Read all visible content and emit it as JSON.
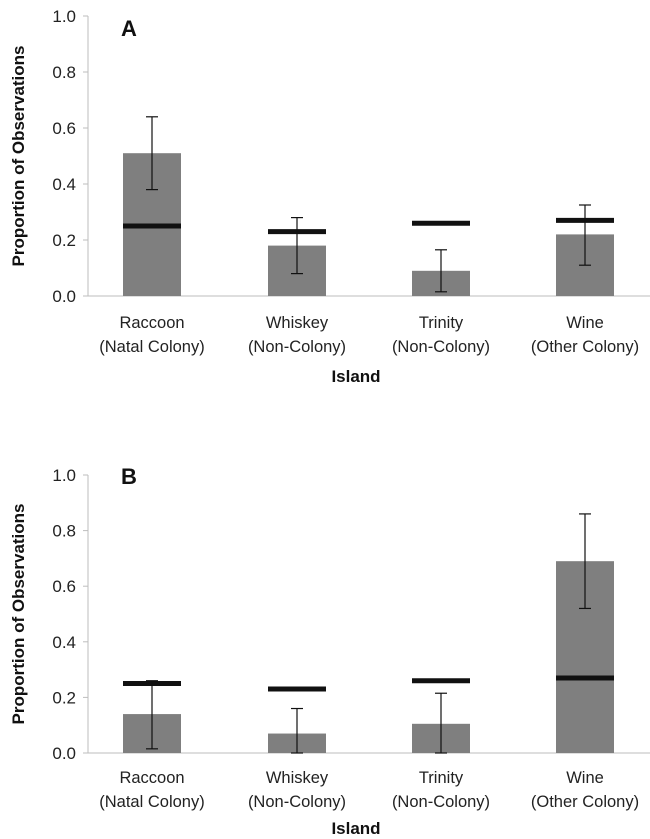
{
  "chart_data": [
    {
      "type": "bar",
      "panel_label": "A",
      "categories": [
        {
          "line1": "Raccoon",
          "line2": "(Natal Colony)"
        },
        {
          "line1": "Whiskey",
          "line2": "(Non-Colony)"
        },
        {
          "line1": "Trinity",
          "line2": "(Non-Colony)"
        },
        {
          "line1": "Wine",
          "line2": "(Other Colony)"
        }
      ],
      "values": [
        0.51,
        0.18,
        0.09,
        0.22
      ],
      "error_low": [
        0.38,
        0.08,
        0.015,
        0.11
      ],
      "error_high": [
        0.64,
        0.28,
        0.165,
        0.325
      ],
      "expected": [
        0.25,
        0.23,
        0.26,
        0.27
      ],
      "xlabel": "Island",
      "ylabel": "Proportion of Observations",
      "ylim": [
        0,
        1
      ],
      "yticks": [
        "0.0",
        "0.2",
        "0.4",
        "0.6",
        "0.8",
        "1.0"
      ],
      "grid": false,
      "bar_color": "#7f7f7f",
      "expected_color": "#111111"
    },
    {
      "type": "bar",
      "panel_label": "B",
      "categories": [
        {
          "line1": "Raccoon",
          "line2": "(Natal Colony)"
        },
        {
          "line1": "Whiskey",
          "line2": "(Non-Colony)"
        },
        {
          "line1": "Trinity",
          "line2": "(Non-Colony)"
        },
        {
          "line1": "Wine",
          "line2": "(Other Colony)"
        }
      ],
      "values": [
        0.14,
        0.07,
        0.105,
        0.69
      ],
      "error_low": [
        0.015,
        0.0,
        0.0,
        0.52
      ],
      "error_high": [
        0.26,
        0.16,
        0.215,
        0.86
      ],
      "expected": [
        0.25,
        0.23,
        0.26,
        0.27
      ],
      "xlabel": "Island",
      "ylabel": "Proportion of Observations",
      "ylim": [
        0,
        1
      ],
      "yticks": [
        "0.0",
        "0.2",
        "0.4",
        "0.6",
        "0.8",
        "1.0"
      ],
      "grid": false,
      "bar_color": "#7f7f7f",
      "expected_color": "#111111"
    }
  ]
}
